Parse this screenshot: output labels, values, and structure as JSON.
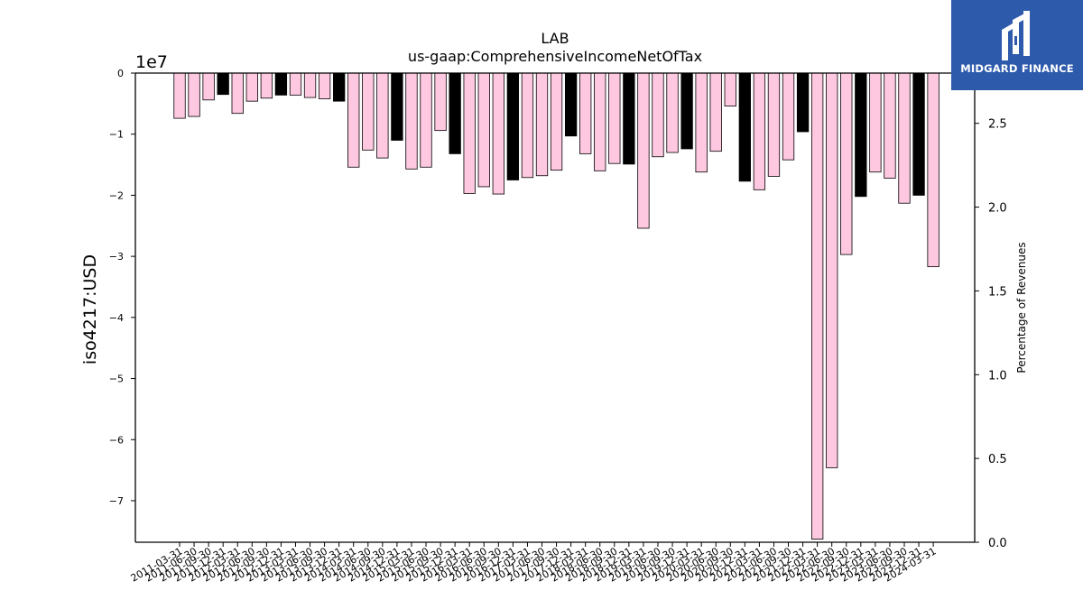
{
  "chart_data": {
    "type": "bar",
    "title": "LAB",
    "subtitle": "us-gaap:ComprehensiveIncomeNetOfTax",
    "ylabel": "iso4217:USD",
    "y2label": "Percentage of Revenues",
    "y_offset_label": "1e7",
    "y_scale": 10000000,
    "ylim": [
      -7.68,
      0
    ],
    "yticks": [
      0,
      -1,
      -2,
      -3,
      -4,
      -5,
      -6,
      -7
    ],
    "ytick_labels": [
      "0",
      "−1",
      "−2",
      "−3",
      "−4",
      "−5",
      "−6",
      "−7"
    ],
    "y2lim": [
      0,
      2.8
    ],
    "y2ticks": [
      0.0,
      0.5,
      1.0,
      1.5,
      2.0,
      2.5
    ],
    "y2tick_labels": [
      "0.0",
      "0.5",
      "1.0",
      "1.5",
      "2.0",
      "2.5"
    ],
    "colors": {
      "annual": "#000000",
      "quarter": "#ffc8e1",
      "edge": "#000000"
    },
    "categories": [
      "2011-03-31",
      "2011-06-30",
      "2011-09-30",
      "2011-12-31",
      "2012-03-31",
      "2012-06-30",
      "2012-09-30",
      "2012-12-31",
      "2013-03-31",
      "2013-06-30",
      "2013-09-30",
      "2013-12-31",
      "2014-03-31",
      "2014-06-30",
      "2014-09-30",
      "2014-12-31",
      "2015-03-31",
      "2015-06-30",
      "2015-09-30",
      "2015-12-31",
      "2016-03-31",
      "2016-06-30",
      "2016-09-30",
      "2016-12-31",
      "2017-03-31",
      "2017-06-30",
      "2017-09-30",
      "2017-12-31",
      "2018-03-31",
      "2018-06-30",
      "2018-09-30",
      "2018-12-31",
      "2019-03-31",
      "2019-06-30",
      "2019-09-30",
      "2019-12-31",
      "2020-03-31",
      "2020-06-30",
      "2020-09-30",
      "2020-12-31",
      "2021-03-31",
      "2021-06-30",
      "2021-09-30",
      "2021-12-31",
      "2022-03-31",
      "2022-06-30",
      "2022-09-30",
      "2022-12-31",
      "2023-03-31",
      "2023-06-30",
      "2023-09-30",
      "2023-12-31",
      "2024-03-31"
    ],
    "values": [
      -0.74,
      -0.71,
      -0.44,
      -0.35,
      -0.66,
      -0.46,
      -0.41,
      -0.36,
      -0.36,
      -0.4,
      -0.42,
      -0.46,
      -1.54,
      -1.26,
      -1.39,
      -1.1,
      -1.57,
      -1.54,
      -0.94,
      -1.32,
      -1.97,
      -1.86,
      -1.98,
      -1.75,
      -1.71,
      -1.68,
      -1.59,
      -1.03,
      -1.32,
      -1.6,
      -1.48,
      -1.49,
      -2.54,
      -1.37,
      -1.3,
      -1.24,
      -1.62,
      -1.28,
      -0.54,
      -1.77,
      -1.91,
      -1.69,
      -1.42,
      -0.96,
      -7.63,
      -6.46,
      -2.97,
      -2.02,
      -1.62,
      -1.72,
      -2.13,
      -2.0,
      -3.17
    ],
    "bar_kind": [
      "quarter",
      "quarter",
      "quarter",
      "annual",
      "quarter",
      "quarter",
      "quarter",
      "annual",
      "quarter",
      "quarter",
      "quarter",
      "annual",
      "quarter",
      "quarter",
      "quarter",
      "annual",
      "quarter",
      "quarter",
      "quarter",
      "annual",
      "quarter",
      "quarter",
      "quarter",
      "annual",
      "quarter",
      "quarter",
      "quarter",
      "annual",
      "quarter",
      "quarter",
      "quarter",
      "annual",
      "quarter",
      "quarter",
      "quarter",
      "annual",
      "quarter",
      "quarter",
      "quarter",
      "annual",
      "quarter",
      "quarter",
      "quarter",
      "annual",
      "quarter",
      "quarter",
      "quarter",
      "annual",
      "quarter",
      "quarter",
      "quarter",
      "annual",
      "quarter"
    ],
    "grid": false,
    "legend": "none"
  },
  "logo": {
    "text": "MIDGARD FINANCE",
    "icon": "midgard-logo-icon"
  }
}
